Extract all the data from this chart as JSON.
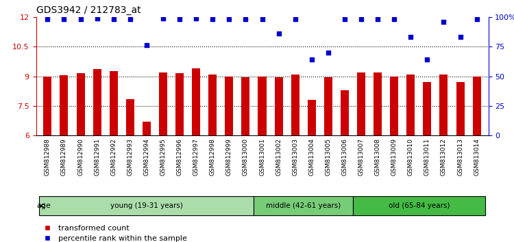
{
  "title": "GDS3942 / 212783_at",
  "samples": [
    "GSM812988",
    "GSM812989",
    "GSM812990",
    "GSM812991",
    "GSM812992",
    "GSM812993",
    "GSM812994",
    "GSM812995",
    "GSM812996",
    "GSM812997",
    "GSM812998",
    "GSM812999",
    "GSM813000",
    "GSM813001",
    "GSM813002",
    "GSM813003",
    "GSM813004",
    "GSM813005",
    "GSM813006",
    "GSM813007",
    "GSM813008",
    "GSM813009",
    "GSM813010",
    "GSM813011",
    "GSM813012",
    "GSM813013",
    "GSM813014"
  ],
  "bar_values": [
    9.0,
    9.05,
    9.15,
    9.35,
    9.25,
    7.85,
    6.7,
    9.2,
    9.15,
    9.4,
    9.1,
    9.0,
    8.95,
    9.0,
    8.95,
    9.1,
    7.8,
    8.95,
    8.3,
    9.2,
    9.2,
    9.0,
    9.1,
    8.7,
    9.1,
    8.7,
    9.0
  ],
  "dot_values": [
    98,
    98,
    98,
    99,
    98,
    98,
    76,
    99,
    98,
    99,
    98,
    98,
    98,
    98,
    86,
    98,
    64,
    70,
    98,
    98,
    98,
    98,
    83,
    64,
    96,
    83,
    98
  ],
  "bar_color": "#cc0000",
  "dot_color": "#0000cc",
  "ylim_left": [
    6,
    12
  ],
  "ylim_right": [
    0,
    100
  ],
  "yticks_left": [
    6,
    7.5,
    9,
    10.5,
    12
  ],
  "ytick_labels_left": [
    "6",
    "7.5",
    "9",
    "10.5",
    "12"
  ],
  "yticks_right": [
    0,
    25,
    50,
    75,
    100
  ],
  "ytick_labels_right": [
    "0",
    "25",
    "50",
    "75",
    "100%"
  ],
  "hlines": [
    7.5,
    9.0,
    10.5
  ],
  "groups": [
    {
      "label": "young (19-31 years)",
      "start": 0,
      "end": 13,
      "color": "#aaddaa"
    },
    {
      "label": "middle (42-61 years)",
      "start": 13,
      "end": 19,
      "color": "#77cc77"
    },
    {
      "label": "old (65-84 years)",
      "start": 19,
      "end": 27,
      "color": "#44bb44"
    }
  ],
  "age_label": "age",
  "legend_bar_label": "transformed count",
  "legend_dot_label": "percentile rank within the sample",
  "background_color": "#ffffff",
  "xtick_bg_color": "#cccccc",
  "dot_size": 18
}
